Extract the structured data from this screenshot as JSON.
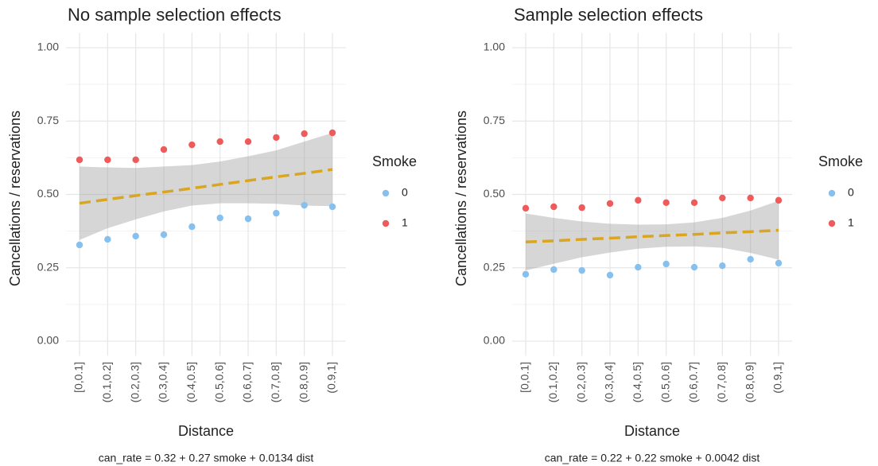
{
  "chart_data": [
    {
      "type": "scatter",
      "title": "No sample selection effects",
      "x_label": "Distance",
      "y_label": "Cancellations / reservations",
      "caption": "can_rate = 0.32 + 0.27 smoke + 0.0134 dist",
      "legend_title": "Smoke",
      "categories": [
        "[0,0.1]",
        "(0.1,0.2]",
        "(0.2,0.3]",
        "(0.3,0.4]",
        "(0.4,0.5]",
        "(0.5,0.6]",
        "(0.6,0.7]",
        "(0.7,0.8]",
        "(0.8,0.9]",
        "(0.9,1]"
      ],
      "series": [
        {
          "name": "0",
          "color": "#86c0ee",
          "values": [
            0.328,
            0.347,
            0.358,
            0.363,
            0.39,
            0.42,
            0.417,
            0.436,
            0.463,
            0.458
          ]
        },
        {
          "name": "1",
          "color": "#ef5a5a",
          "values": [
            0.618,
            0.618,
            0.618,
            0.653,
            0.669,
            0.68,
            0.68,
            0.694,
            0.707,
            0.71
          ]
        }
      ],
      "fit": {
        "color": "#daa520",
        "values": [
          0.47,
          0.483,
          0.496,
          0.508,
          0.521,
          0.534,
          0.547,
          0.56,
          0.572,
          0.585
        ],
        "lower": [
          0.345,
          0.385,
          0.415,
          0.442,
          0.462,
          0.47,
          0.47,
          0.468,
          0.462,
          0.46
        ],
        "upper": [
          0.595,
          0.592,
          0.59,
          0.595,
          0.6,
          0.612,
          0.63,
          0.65,
          0.68,
          0.71
        ]
      },
      "ylim": [
        -0.05,
        1.05
      ],
      "yticks": [
        {
          "value": 0,
          "label": "0.00"
        },
        {
          "value": 0.25,
          "label": "0.25"
        },
        {
          "value": 0.5,
          "label": "0.50"
        },
        {
          "value": 0.75,
          "label": "0.75"
        },
        {
          "value": 1,
          "label": "1.00"
        }
      ],
      "minor_yticks": [
        0.125,
        0.375,
        0.625,
        0.875
      ],
      "grid": true
    },
    {
      "type": "scatter",
      "title": "Sample selection effects",
      "x_label": "Distance",
      "y_label": "Cancellations / reservations",
      "caption": "can_rate = 0.22 + 0.22 smoke + 0.0042 dist",
      "legend_title": "Smoke",
      "categories": [
        "[0,0.1]",
        "(0.1,0.2]",
        "(0.2,0.3]",
        "(0.3,0.4]",
        "(0.4,0.5]",
        "(0.5,0.6]",
        "(0.6,0.7]",
        "(0.7,0.8]",
        "(0.8,0.9]",
        "(0.9,1]"
      ],
      "series": [
        {
          "name": "0",
          "color": "#86c0ee",
          "values": [
            0.228,
            0.244,
            0.241,
            0.225,
            0.252,
            0.263,
            0.252,
            0.257,
            0.279,
            0.266
          ]
        },
        {
          "name": "1",
          "color": "#ef5a5a",
          "values": [
            0.453,
            0.458,
            0.455,
            0.469,
            0.48,
            0.472,
            0.472,
            0.488,
            0.488,
            0.48
          ]
        }
      ],
      "fit": {
        "color": "#daa520",
        "values": [
          0.338,
          0.342,
          0.347,
          0.351,
          0.356,
          0.36,
          0.364,
          0.369,
          0.373,
          0.378
        ],
        "lower": [
          0.241,
          0.264,
          0.286,
          0.302,
          0.315,
          0.322,
          0.323,
          0.318,
          0.301,
          0.278
        ],
        "upper": [
          0.435,
          0.42,
          0.408,
          0.4,
          0.397,
          0.398,
          0.405,
          0.42,
          0.445,
          0.478
        ]
      },
      "ylim": [
        -0.05,
        1.05
      ],
      "yticks": [
        {
          "value": 0,
          "label": "0.00"
        },
        {
          "value": 0.25,
          "label": "0.25"
        },
        {
          "value": 0.5,
          "label": "0.50"
        },
        {
          "value": 0.75,
          "label": "0.75"
        },
        {
          "value": 1,
          "label": "1.00"
        }
      ],
      "minor_yticks": [
        0.125,
        0.375,
        0.625,
        0.875
      ],
      "grid": true
    }
  ]
}
